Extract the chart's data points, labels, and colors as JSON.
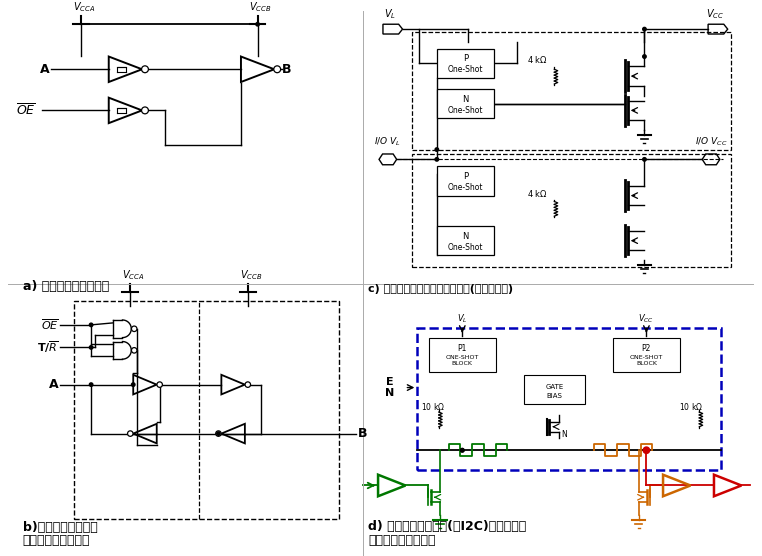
{
  "bg_color": "#ffffff",
  "line_color": "#000000",
  "green_color": "#007700",
  "orange_color": "#cc6600",
  "red_color": "#cc0000",
  "blue_dash_color": "#0000bb",
  "panel_a_caption": "a) 单向逻辑电平转换器",
  "panel_b_caption_1": "b)带方向控制引脚的",
  "panel_b_caption_2": "双向逻辑电平转换器",
  "panel_c_caption": "c) 自动感测双向逻辑电平转换器(推挽型输出)",
  "panel_d_caption_1": "d) 用于漏极开路应用(如I2C)的自动感测",
  "panel_d_caption_2": "双向逻辑电平转换器",
  "figsize": [
    7.62,
    5.56
  ],
  "dpi": 100
}
